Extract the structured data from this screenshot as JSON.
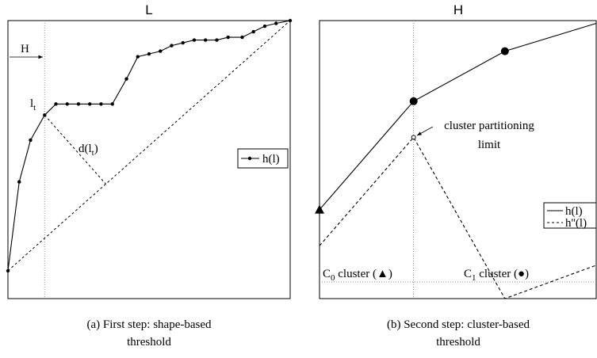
{
  "chart_data": [
    {
      "type": "line",
      "title": "L",
      "caption": [
        "(a)  First step: shape-based",
        "threshold"
      ],
      "xlim": [
        0,
        1
      ],
      "ylim": [
        0,
        1
      ],
      "series": [
        {
          "name": "h(l)",
          "color": "#000000",
          "marker": "dot",
          "x": [
            0,
            0.04,
            0.08,
            0.13,
            0.17,
            0.21,
            0.25,
            0.29,
            0.33,
            0.37,
            0.42,
            0.46,
            0.5,
            0.54,
            0.58,
            0.62,
            0.66,
            0.7,
            0.74,
            0.78,
            0.83,
            0.87,
            0.91,
            0.95,
            1.0
          ],
          "values": [
            0.1,
            0.42,
            0.57,
            0.66,
            0.7,
            0.7,
            0.7,
            0.7,
            0.7,
            0.7,
            0.79,
            0.87,
            0.88,
            0.89,
            0.91,
            0.92,
            0.93,
            0.93,
            0.93,
            0.94,
            0.94,
            0.96,
            0.98,
            0.99,
            1.0
          ]
        }
      ],
      "guides": {
        "vline": 0.13
      },
      "annotations": [
        {
          "text": "l",
          "sub": "t"
        },
        {
          "text": "d(l",
          "sub": "t",
          "rest": ")"
        },
        {
          "text": "H"
        }
      ]
    },
    {
      "type": "line",
      "title": "H",
      "caption": [
        "(b)  Second step: cluster-based",
        "threshold"
      ],
      "xlim": [
        0,
        1
      ],
      "ylim": [
        0,
        1
      ],
      "series": [
        {
          "name": "h(l)",
          "color": "#000000",
          "markers": [
            "triangle",
            "circle",
            "circle",
            null
          ],
          "x": [
            0,
            0.34,
            0.67,
            1.0
          ],
          "values": [
            0.32,
            0.71,
            0.89,
            0.99
          ]
        },
        {
          "name": "h''(l)",
          "color": "#000000",
          "dash": true,
          "markers": [
            null,
            "open",
            null,
            null
          ],
          "x": [
            0,
            0.34,
            0.67,
            1.0
          ],
          "values": [
            0.19,
            0.58,
            0.0,
            0.12
          ]
        }
      ],
      "guides": {
        "vline": 0.34,
        "hline": 0.06
      },
      "annotations": [
        {
          "text": "cluster partitioning"
        },
        {
          "text": "limit"
        },
        {
          "text": "C",
          "sub": "0",
          "rest": " cluster (▲)"
        },
        {
          "text": "C",
          "sub": "1",
          "rest": " cluster (●)"
        }
      ]
    }
  ]
}
